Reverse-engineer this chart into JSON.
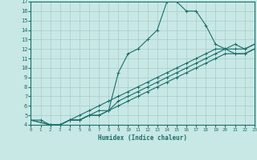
{
  "xlabel": "Humidex (Indice chaleur)",
  "xlim": [
    0,
    23
  ],
  "ylim": [
    4,
    17
  ],
  "xticks": [
    0,
    1,
    2,
    3,
    4,
    5,
    6,
    7,
    8,
    9,
    10,
    11,
    12,
    13,
    14,
    15,
    16,
    17,
    18,
    19,
    20,
    21,
    22,
    23
  ],
  "yticks": [
    4,
    5,
    6,
    7,
    8,
    9,
    10,
    11,
    12,
    13,
    14,
    15,
    16,
    17
  ],
  "bg_color": "#c8e8e5",
  "line_color": "#1a6e6a",
  "grid_color": "#a8ccca",
  "line1_x": [
    0,
    1,
    2,
    3,
    4,
    5,
    6,
    7,
    8,
    9,
    10,
    11,
    12,
    13,
    14,
    15,
    16,
    17,
    18,
    19,
    20,
    21,
    22,
    23
  ],
  "line1_y": [
    4.5,
    4.5,
    4.0,
    4.0,
    4.5,
    4.5,
    5.0,
    5.0,
    5.5,
    9.5,
    11.5,
    12.0,
    13.0,
    14.0,
    17.0,
    17.0,
    16.0,
    16.0,
    14.5,
    12.5,
    12.0,
    11.5,
    11.5,
    12.0
  ],
  "line2_x": [
    0,
    2,
    3,
    4,
    5,
    6,
    7,
    8,
    9,
    10,
    11,
    12,
    13,
    14,
    15,
    16,
    17,
    18,
    19,
    20,
    21,
    22,
    23
  ],
  "line2_y": [
    4.5,
    4.0,
    4.0,
    4.5,
    4.5,
    5.0,
    5.0,
    5.5,
    6.5,
    7.0,
    7.5,
    8.0,
    8.5,
    9.0,
    9.5,
    10.0,
    10.5,
    11.0,
    11.5,
    12.0,
    12.0,
    12.0,
    12.5
  ],
  "line3_x": [
    0,
    2,
    3,
    4,
    5,
    6,
    7,
    8,
    9,
    10,
    11,
    12,
    13,
    14,
    15,
    16,
    17,
    18,
    19,
    20,
    21,
    22,
    23
  ],
  "line3_y": [
    4.5,
    4.0,
    4.0,
    4.5,
    4.5,
    5.0,
    5.5,
    5.5,
    6.0,
    6.5,
    7.0,
    7.5,
    8.0,
    8.5,
    9.0,
    9.5,
    10.0,
    10.5,
    11.0,
    11.5,
    11.5,
    11.5,
    12.0
  ],
  "line4_x": [
    3,
    4,
    5,
    6,
    7,
    8,
    9,
    10,
    11,
    12,
    13,
    14,
    15,
    16,
    17,
    18,
    19,
    20,
    21,
    22,
    23
  ],
  "line4_y": [
    4.0,
    4.5,
    5.0,
    5.5,
    6.0,
    6.5,
    7.0,
    7.5,
    8.0,
    8.5,
    9.0,
    9.5,
    10.0,
    10.5,
    11.0,
    11.5,
    12.0,
    12.0,
    12.5,
    12.0,
    12.5
  ]
}
